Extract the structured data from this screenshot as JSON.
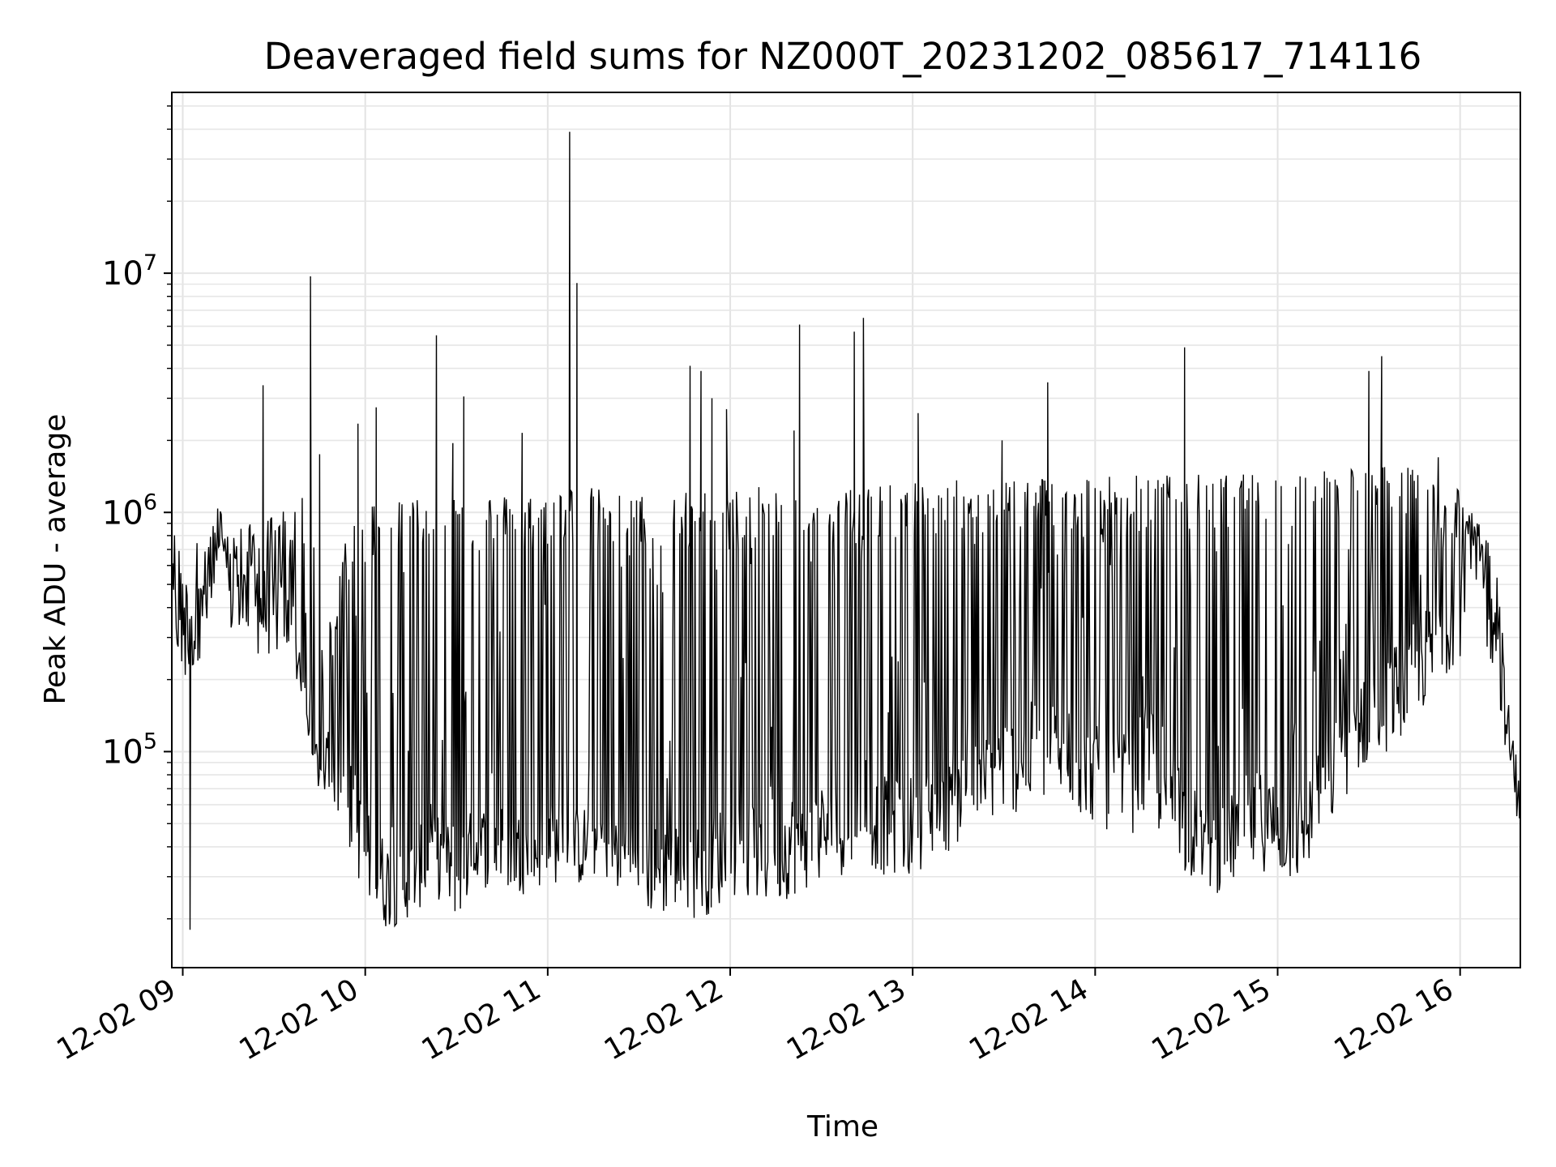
{
  "chart_data": {
    "type": "line",
    "title": "Deaveraged field sums for NZ000T_20231202_085617_714116",
    "xlabel": "Time",
    "ylabel": "Peak ADU - average",
    "x_ticks": [
      "12-02 09",
      "12-02 10",
      "12-02 11",
      "12-02 12",
      "12-02 13",
      "12-02 14",
      "12-02 15",
      "12-02 16"
    ],
    "x_tick_hours": [
      9,
      10,
      11,
      12,
      13,
      14,
      15,
      16
    ],
    "xlim_hours": [
      8.94,
      16.33
    ],
    "y_scale": "log",
    "ylim": [
      12500,
      57000000
    ],
    "y_ticks": [
      {
        "base": "10",
        "exp": "5",
        "value": 100000
      },
      {
        "base": "10",
        "exp": "6",
        "value": 1000000
      },
      {
        "base": "10",
        "exp": "7",
        "value": 10000000
      }
    ],
    "grid": true,
    "line_color": "#000000",
    "series": [
      {
        "x_hours": [
          8.94,
          9.0,
          9.1,
          9.2,
          9.3,
          9.4,
          9.5,
          9.6,
          9.7,
          9.75,
          9.8,
          9.9,
          10.0,
          10.1,
          10.2,
          10.3,
          10.4,
          10.5,
          10.6,
          10.7,
          10.8,
          10.9,
          11.0,
          11.1,
          11.2,
          11.3,
          11.4,
          11.5,
          11.6,
          11.7,
          11.8,
          11.9,
          12.0,
          12.1,
          12.2,
          12.3,
          12.4,
          12.5,
          12.6,
          12.7,
          12.8,
          12.9,
          13.0,
          13.1,
          13.2,
          13.3,
          13.4,
          13.5,
          13.6,
          13.7,
          13.8,
          13.9,
          14.0,
          14.1,
          14.2,
          14.3,
          14.4,
          14.5,
          14.6,
          14.7,
          14.8,
          14.9,
          15.0,
          15.1,
          15.2,
          15.3,
          15.4,
          15.5,
          15.6,
          15.7,
          15.8,
          15.9,
          16.0,
          16.05,
          16.1,
          16.15,
          16.2,
          16.25,
          16.3,
          16.33
        ],
        "baseline": [
          500000,
          250000,
          400000,
          650000,
          500000,
          480000,
          450000,
          350000,
          100000,
          85000,
          90000,
          80000,
          45000,
          35000,
          30000,
          38000,
          42000,
          40000,
          45000,
          48000,
          45000,
          42000,
          48000,
          45000,
          46000,
          50000,
          45000,
          42000,
          38000,
          40000,
          40000,
          42000,
          52000,
          48000,
          50000,
          52000,
          55000,
          58000,
          60000,
          65000,
          62000,
          60000,
          62000,
          65000,
          70000,
          80000,
          90000,
          110000,
          120000,
          130000,
          120000,
          110000,
          100000,
          90000,
          100000,
          120000,
          100000,
          60000,
          50000,
          45000,
          60000,
          65000,
          60000,
          55000,
          70000,
          100000,
          160000,
          200000,
          200000,
          250000,
          300000,
          350000,
          500000,
          800000,
          700000,
          600000,
          400000,
          150000,
          80000,
          70000
        ],
        "upper_envelope": [
          900000,
          700000,
          800000,
          1100000,
          900000,
          900000,
          1000000,
          1100000,
          1200000,
          300000,
          350000,
          900000,
          1100000,
          1200000,
          1200000,
          1200000,
          1250000,
          1250000,
          1250000,
          1200000,
          1200000,
          1250000,
          1300000,
          1300000,
          1300000,
          1250000,
          1200000,
          1200000,
          1200000,
          1200000,
          1250000,
          1250000,
          1250000,
          1250000,
          1300000,
          1300000,
          1300000,
          1350000,
          1350000,
          1350000,
          1300000,
          1300000,
          1350000,
          1350000,
          1350000,
          1400000,
          1400000,
          1400000,
          1450000,
          1450000,
          1450000,
          1450000,
          1450000,
          1450000,
          1450000,
          1450000,
          1450000,
          1450000,
          1450000,
          1450000,
          1450000,
          1450000,
          1450000,
          1500000,
          1550000,
          1550000,
          1600000,
          1600000,
          1600000,
          1550000,
          1500000,
          1450000,
          1400000,
          1200000,
          900000,
          800000,
          600000,
          250000,
          100000,
          80000
        ],
        "lower_envelope": [
          350000,
          180000,
          250000,
          400000,
          250000,
          250000,
          250000,
          250000,
          80000,
          65000,
          70000,
          40000,
          24000,
          18000,
          19000,
          22000,
          24000,
          20000,
          25000,
          28000,
          26000,
          25000,
          28000,
          28000,
          27000,
          30000,
          25000,
          22000,
          20000,
          22000,
          20000,
          21000,
          25000,
          24000,
          22000,
          24000,
          26000,
          28000,
          30000,
          33000,
          32000,
          28000,
          30000,
          35000,
          38000,
          45000,
          50000,
          55000,
          55000,
          60000,
          60000,
          55000,
          50000,
          45000,
          45000,
          50000,
          40000,
          30000,
          27000,
          25000,
          30000,
          32000,
          30000,
          28000,
          35000,
          50000,
          70000,
          90000,
          100000,
          120000,
          150000,
          200000,
          250000,
          350000,
          300000,
          250000,
          200000,
          100000,
          55000,
          50000
        ],
        "spikes": [
          {
            "x": 9.04,
            "y": 18000
          },
          {
            "x": 9.44,
            "y": 3400000
          },
          {
            "x": 9.7,
            "y": 9700000
          },
          {
            "x": 9.75,
            "y": 1750000
          },
          {
            "x": 9.96,
            "y": 2350000
          },
          {
            "x": 10.06,
            "y": 2750000
          },
          {
            "x": 10.39,
            "y": 5500000
          },
          {
            "x": 10.48,
            "y": 1950000
          },
          {
            "x": 10.54,
            "y": 3050000
          },
          {
            "x": 10.86,
            "y": 2150000
          },
          {
            "x": 11.12,
            "y": 39000000
          },
          {
            "x": 11.16,
            "y": 9100000
          },
          {
            "x": 11.78,
            "y": 4100000
          },
          {
            "x": 11.84,
            "y": 3900000
          },
          {
            "x": 11.9,
            "y": 3000000
          },
          {
            "x": 11.98,
            "y": 2700000
          },
          {
            "x": 12.35,
            "y": 2200000
          },
          {
            "x": 12.38,
            "y": 6100000
          },
          {
            "x": 12.68,
            "y": 5700000
          },
          {
            "x": 12.73,
            "y": 6500000
          },
          {
            "x": 13.03,
            "y": 2600000
          },
          {
            "x": 13.49,
            "y": 2000000
          },
          {
            "x": 13.74,
            "y": 3500000
          },
          {
            "x": 14.49,
            "y": 4900000
          },
          {
            "x": 15.5,
            "y": 3900000
          },
          {
            "x": 15.57,
            "y": 4500000
          },
          {
            "x": 15.88,
            "y": 1700000
          }
        ]
      }
    ]
  }
}
